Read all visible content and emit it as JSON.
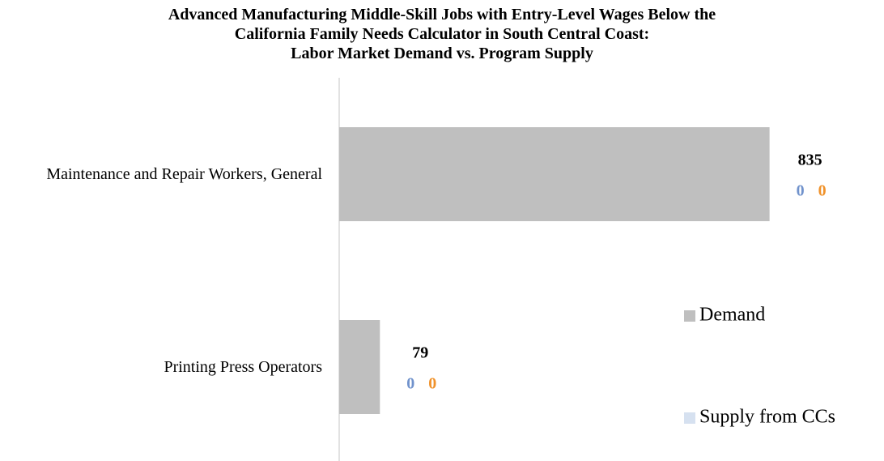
{
  "chart_data": {
    "type": "hbar",
    "title": "Advanced Manufacturing Middle-Skill Jobs with Entry-Level Wages Below the\nCalifornia Family Needs Calculator in South Central Coast:\nLabor Market Demand vs. Program Supply",
    "categories": [
      "Maintenance and Repair Workers, General",
      "Printing Press Operators"
    ],
    "series": [
      {
        "name": "Demand",
        "color": "#bfbfbf",
        "label_color": "#000000",
        "values": [
          835,
          79
        ]
      },
      {
        "name": "Supply from CCs",
        "color": "#d6e1f0",
        "label_color": "#7092cc",
        "values": [
          0,
          0
        ]
      },
      {
        "color": "#f0922b",
        "label_color": "#f0922b",
        "values": [
          0,
          0
        ]
      }
    ],
    "xlim": [
      0,
      900
    ],
    "legend": "right"
  }
}
